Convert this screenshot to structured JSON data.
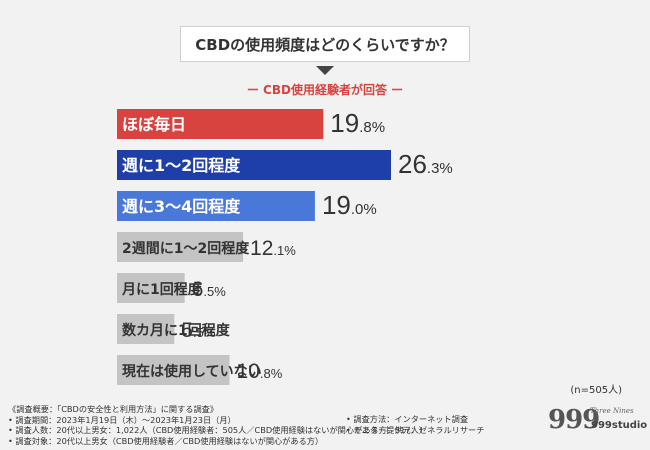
{
  "question": "CBDの使用頻度はどのくらいですか？",
  "subtitle": "ー CBD使用経験者が回答 ー",
  "sample": "(n=505人)",
  "notes": [
    "《調査概要：「CBDの安全性と利用方法」に関する調査》",
    "• 調査期間：2023年1月19日（木）〜2023年1月23日（月）",
    "• 調査人数：20代以上男女：1,022人（CBD使用経験者：505人／CBD使用経験はないが関心がある方：517人）",
    "• 調査対象：20代以上男女（CBD使用経験者／CBD使用経験はないが関心がある方）"
  ],
  "notes_right": [
    "• 調査方法：インターネット調査",
    "• モニター提供元：ゼネラルリサーチ"
  ],
  "logo": {
    "number": "999",
    "tagline": "Three Nines",
    "brand": "999studio"
  },
  "chart_data": {
    "type": "bar",
    "orientation": "horizontal",
    "unit": "%",
    "categories": [
      "ほぼ毎日",
      "週に1〜2回程度",
      "週に3〜4回程度",
      "2週間に1〜2回程度",
      "月に1回程度",
      "数カ月に1回程度",
      "現在は使用していない"
    ],
    "values": [
      19.8,
      26.3,
      19.0,
      12.1,
      6.5,
      5.5,
      10.8
    ],
    "labels": [
      {
        "int": "19",
        "dec": ".8%"
      },
      {
        "int": "26",
        "dec": ".3%"
      },
      {
        "int": "19",
        "dec": ".0%"
      },
      {
        "int": "12",
        "dec": ".1%"
      },
      {
        "int": "6",
        "dec": ".5%"
      },
      {
        "int": "5",
        "dec": ".5%"
      },
      {
        "int": "10",
        "dec": ".8%"
      }
    ],
    "colors": [
      "#d9433f",
      "#1f3fa8",
      "#4a78d8",
      "#c4c4c4",
      "#c4c4c4",
      "#c4c4c4",
      "#c4c4c4"
    ],
    "text_colors": [
      "#ffffff",
      "#ffffff",
      "#ffffff",
      "#333333",
      "#333333",
      "#333333",
      "#333333"
    ],
    "xlim": [
      0,
      26.3
    ]
  }
}
